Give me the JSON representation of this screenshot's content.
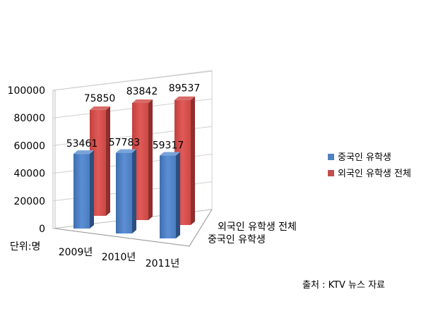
{
  "chart_data": {
    "type": "bar",
    "categories": [
      "2009년",
      "2010년",
      "2011년"
    ],
    "series": [
      {
        "name": "중국인 유학생",
        "values": [
          53461,
          57783,
          59317
        ],
        "color": "#4F81BD"
      },
      {
        "name": "외국인 유학생 전체",
        "values": [
          75850,
          83842,
          89537
        ],
        "color": "#C0504D"
      }
    ],
    "depth_labels": [
      "외국인 유학생 전체",
      "중국인 유학생"
    ],
    "y_ticks": [
      "0",
      "20000",
      "40000",
      "60000",
      "80000",
      "100000"
    ],
    "ylim": [
      0,
      100000
    ],
    "unit_label": "단위:명",
    "grid": true,
    "legend_position": "right"
  },
  "source_note": "출처 : KTV 뉴스 자료"
}
